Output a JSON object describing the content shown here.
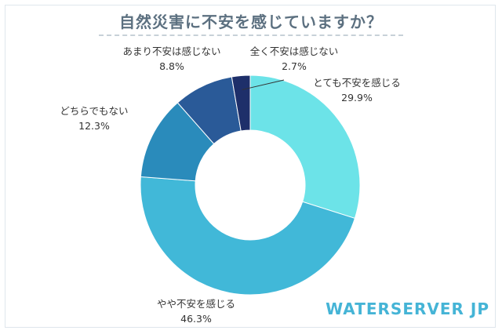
{
  "title": "自然災害に不安を感じていますか？",
  "brand": "WATERSERVER JP",
  "chart_data": {
    "type": "pie",
    "title": "自然災害に不安を感じていますか？",
    "slices": [
      {
        "label": "とても不安を感じる",
        "value": 29.9,
        "value_text": "29.9%",
        "color": "#6ce3e8"
      },
      {
        "label": "やや不安を感じる",
        "value": 46.3,
        "value_text": "46.3%",
        "color": "#41b8d8"
      },
      {
        "label": "どちらでもない",
        "value": 12.3,
        "value_text": "12.3%",
        "color": "#2a8bbb"
      },
      {
        "label": "あまり不安は感じない",
        "value": 8.8,
        "value_text": "8.8%",
        "color": "#2a5a98"
      },
      {
        "label": "全く不安は感じない",
        "value": 2.7,
        "value_text": "2.7%",
        "color": "#1e2f6a"
      }
    ],
    "donut": true,
    "legend": "none"
  }
}
